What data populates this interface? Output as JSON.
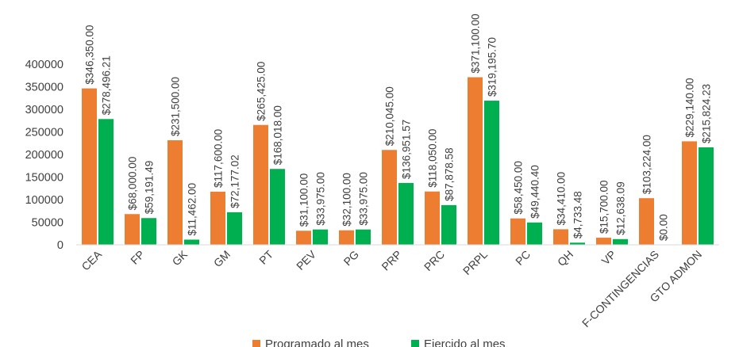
{
  "chart_data": {
    "type": "bar",
    "title": "",
    "xlabel": "",
    "ylabel": "",
    "ylim": [
      0,
      400000
    ],
    "yticks": [
      "400000",
      "350000",
      "300000",
      "250000",
      "200000",
      "150000",
      "100000",
      "50000",
      "0"
    ],
    "categories": [
      "CEA",
      "FP",
      "GK",
      "GM",
      "PT",
      "PEV",
      "PG",
      "PRP",
      "PRC",
      "PRPL",
      "PC",
      "QH",
      "VP",
      "F-CONTINGENCIAS",
      "GTO ADMON"
    ],
    "series": [
      {
        "name": "Programado al mes",
        "color": "#ED7D31",
        "values": [
          346350,
          68000,
          231500,
          117600,
          265425,
          31100,
          32100,
          210045,
          118050,
          371100,
          58450,
          34410,
          15700,
          103224,
          229140
        ],
        "labels": [
          "$346,350.00",
          "$68,000.00",
          "$231,500.00",
          "$117,600.00",
          "$265,425.00",
          "$31,100.00",
          "$32,100.00",
          "$210,045.00",
          "$118,050.00",
          "$371,100.00",
          "$58,450.00",
          "$34,410.00",
          "$15,700.00",
          "$103,224.00",
          "$229,140.00"
        ]
      },
      {
        "name": "Ejercido al mes",
        "color": "#00B050",
        "values": [
          278496.21,
          59191.49,
          11462,
          72177.02,
          168018,
          33975,
          33975,
          136951.57,
          87878.58,
          319195.7,
          49440.4,
          4733.48,
          12638.09,
          0,
          215824.23
        ],
        "labels": [
          "$278,496.21",
          "$59,191.49",
          "$11,462.00",
          "$72,177.02",
          "$168,018.00",
          "$33,975.00",
          "$33,975.00",
          "$136,951.57",
          "$87,878.58",
          "$319,195.70",
          "$49,440.40",
          "$4,733.48",
          "$12,638.09",
          "$0.00",
          "$215,824.23"
        ]
      }
    ],
    "legend_position": "bottom",
    "grid": false
  }
}
